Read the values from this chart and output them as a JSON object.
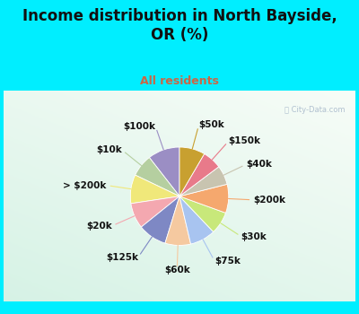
{
  "title": "Income distribution in North Bayside,\nOR (%)",
  "subtitle": "All residents",
  "title_color": "#111111",
  "subtitle_color": "#cc6644",
  "bg_cyan": "#00eeff",
  "watermark": "City-Data.com",
  "slices": [
    {
      "label": "$100k",
      "value": 10,
      "color": "#9b8ec4"
    },
    {
      "label": "$10k",
      "value": 7,
      "color": "#b5cfa0"
    },
    {
      "label": "> $200k",
      "value": 9,
      "color": "#f0e87a"
    },
    {
      "label": "$20k",
      "value": 8,
      "color": "#f4a8b0"
    },
    {
      "label": "$125k",
      "value": 9,
      "color": "#7e88c4"
    },
    {
      "label": "$60k",
      "value": 8,
      "color": "#f5c9a0"
    },
    {
      "label": "$75k",
      "value": 8,
      "color": "#a8c4f0"
    },
    {
      "label": "$30k",
      "value": 7,
      "color": "#c8e87a"
    },
    {
      "label": "$200k",
      "value": 9,
      "color": "#f5a86e"
    },
    {
      "label": "$40k",
      "value": 6,
      "color": "#c8c4b0"
    },
    {
      "label": "$150k",
      "value": 6,
      "color": "#e87a8a"
    },
    {
      "label": "$50k",
      "value": 8,
      "color": "#c8a030"
    }
  ],
  "title_fontsize": 12,
  "subtitle_fontsize": 9,
  "label_fontsize": 7.5
}
